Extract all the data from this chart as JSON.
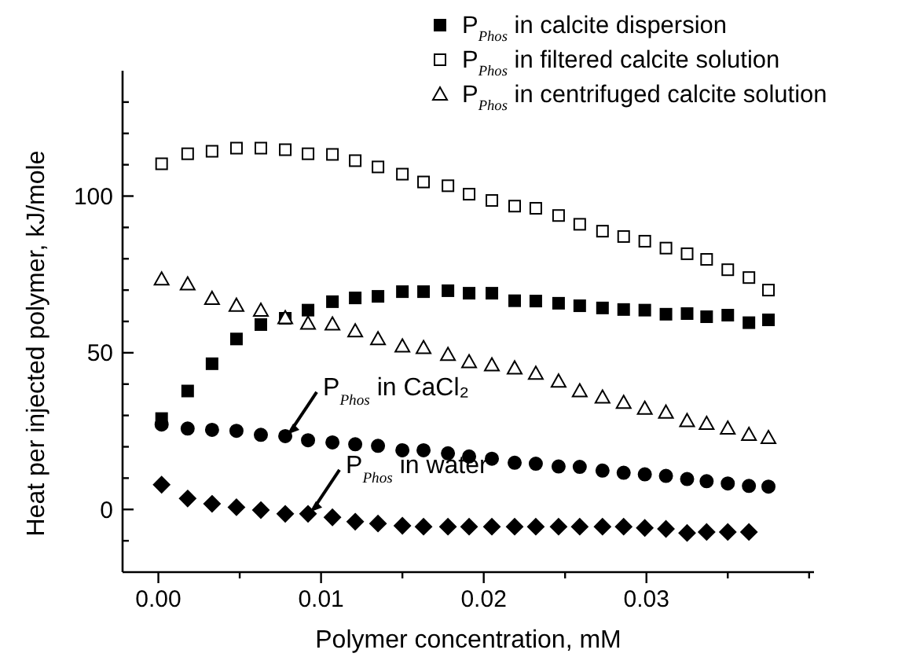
{
  "chart_data": {
    "type": "scatter",
    "xlabel": "Polymer concentration, mM",
    "ylabel": "Heat per injected polymer, kJ/mole",
    "xlim": [
      -0.0022,
      0.0403
    ],
    "xticks": [
      {
        "value": 0,
        "label": "0.00"
      },
      {
        "value": 0.005,
        "label": null
      },
      {
        "value": 0.01,
        "label": "0.01"
      },
      {
        "value": 0.015,
        "label": null
      },
      {
        "value": 0.02,
        "label": "0.02"
      },
      {
        "value": 0.025,
        "label": null
      },
      {
        "value": 0.03,
        "label": "0.03"
      },
      {
        "value": 0.035,
        "label": null
      },
      {
        "value": 0.04,
        "label": null
      }
    ],
    "ylim": [
      -20,
      140
    ],
    "yticks": [
      {
        "value": -10,
        "label": null
      },
      0,
      {
        "value": 10,
        "label": null
      },
      {
        "value": 20,
        "label": null
      },
      {
        "value": 30,
        "label": null
      },
      {
        "value": 40,
        "label": null
      },
      50,
      {
        "value": 60,
        "label": null
      },
      {
        "value": 70,
        "label": null
      },
      {
        "value": 80,
        "label": null
      },
      {
        "value": 90,
        "label": null
      },
      100,
      {
        "value": 110,
        "label": null
      },
      {
        "value": 120,
        "label": null
      },
      {
        "value": 130,
        "label": null
      }
    ],
    "x": [
      0.0002,
      0.0018,
      0.0033,
      0.0048,
      0.0063,
      0.0078,
      0.0092,
      0.0107,
      0.0121,
      0.0135,
      0.015,
      0.0163,
      0.0178,
      0.0191,
      0.0205,
      0.0219,
      0.0232,
      0.0246,
      0.0259,
      0.0273,
      0.0286,
      0.0299,
      0.0312,
      0.0325,
      0.0337,
      0.035,
      0.0363,
      0.0375
    ],
    "legend": "top right",
    "grid": false,
    "series": [
      {
        "name": "P$_{Phos}$ in calcite dispersion",
        "color": "#000000",
        "marker": "square",
        "values": [
          29,
          37.8,
          46.5,
          54.4,
          59,
          61,
          63.6,
          66.3,
          67.5,
          68,
          69.5,
          69.5,
          69.8,
          69,
          69,
          66.6,
          66.5,
          65.8,
          65,
          64.3,
          63.8,
          63.6,
          62.3,
          62.5,
          61.5,
          62,
          59.6,
          60.5
        ]
      },
      {
        "name": "P$_{Phos}$ in filtered calcite solution",
        "color": "#000000",
        "marker": "square-open",
        "values": [
          110.3,
          113.5,
          114.3,
          115.3,
          115.3,
          114.8,
          113.5,
          113.3,
          111.3,
          109.3,
          107,
          104.5,
          103.3,
          100.6,
          98.6,
          96.8,
          96.1,
          93.8,
          91,
          88.8,
          87.1,
          85.6,
          83.4,
          81.6,
          79.8,
          76.5,
          74,
          70
        ]
      },
      {
        "name": "P$_{Phos}$ in centrifuged calcite solution",
        "color": "#000000",
        "marker": "triangle-open",
        "values": [
          73.5,
          71.9,
          67.3,
          65.1,
          63.5,
          61.1,
          59.4,
          59.1,
          56.9,
          54.4,
          52.1,
          51.6,
          49.4,
          47.1,
          46.1,
          45.1,
          43.4,
          40.9,
          37.8,
          35.8,
          34.1,
          32.2,
          31,
          28.3,
          27.4,
          25.9,
          23.9,
          22.9
        ]
      },
      {
        "color": "#000000",
        "marker": "circle",
        "values": [
          27.1,
          25.8,
          25.4,
          25.1,
          23.8,
          23.4,
          22.1,
          21.4,
          20.8,
          20.3,
          18.9,
          18.9,
          17.9,
          16.9,
          16.2,
          14.9,
          14.6,
          13.7,
          13.6,
          12.4,
          11.7,
          11.2,
          10.7,
          9.7,
          9,
          8.3,
          7.5,
          7.3
        ]
      },
      {
        "color": "#000000",
        "marker": "diamond",
        "values": [
          7.9,
          3.5,
          1.8,
          0.7,
          -0.2,
          -1.4,
          -1.4,
          -2.5,
          -3.9,
          -4.5,
          -5.2,
          -5.5,
          -5.5,
          -5.5,
          -5.5,
          -5.5,
          -5.5,
          -5.5,
          -5.5,
          -5.5,
          -5.5,
          -5.9,
          -6.2,
          -7.5,
          -7.2,
          -7.2,
          -7.2,
          null
        ]
      }
    ],
    "annotations": [
      {
        "text": "P$_{Phos}$ in CaCl₂",
        "x": 0.0078,
        "y": 23.4
      },
      {
        "text": "P$_{Phos}$ in water",
        "x": 0.0092,
        "y": -1.4
      }
    ]
  }
}
